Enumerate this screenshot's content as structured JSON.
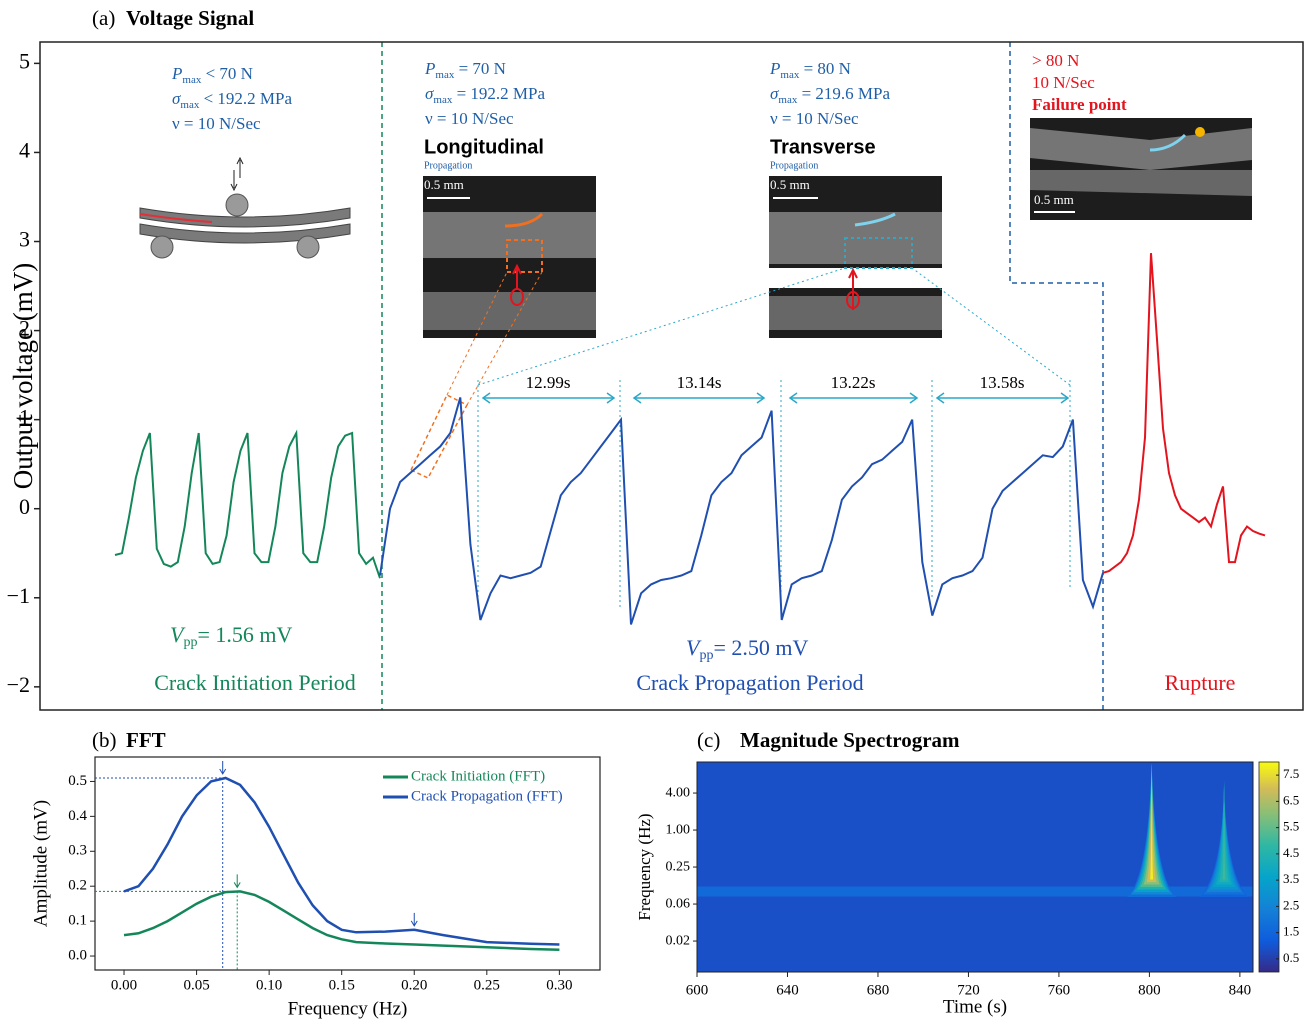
{
  "chart_data": [
    {
      "type": "line",
      "panel_label": "(a)",
      "title": "Voltage Signal",
      "y_label": "Output voltage (mV)",
      "ylim": [
        -2.26,
        5.24
      ],
      "yticks": [
        {
          "value": -2,
          "label": "−2"
        },
        {
          "value": -1,
          "label": "−1"
        },
        0,
        1,
        2,
        3,
        4,
        5
      ],
      "series": [
        {
          "name": "Crack Initiation Period",
          "color": "#14875a",
          "values": [
            -0.52,
            -0.5,
            -0.1,
            0.35,
            0.65,
            0.85,
            -0.45,
            -0.62,
            -0.65,
            -0.6,
            -0.2,
            0.4,
            0.85,
            -0.5,
            -0.62,
            -0.6,
            -0.3,
            0.3,
            0.65,
            0.85,
            -0.5,
            -0.6,
            -0.6,
            -0.2,
            0.4,
            0.7,
            0.85,
            -0.5,
            -0.6,
            -0.6,
            -0.2,
            0.35,
            0.7,
            0.82,
            0.85,
            -0.5,
            -0.62,
            -0.55,
            -0.78
          ]
        },
        {
          "name": "Crack Propagation Period",
          "color": "#1f4fb0",
          "values": [
            -0.75,
            0.0,
            0.3,
            0.4,
            0.5,
            0.6,
            0.7,
            0.85,
            1.25,
            -0.4,
            -1.25,
            -0.95,
            -0.75,
            -0.78,
            -0.75,
            -0.72,
            -0.65,
            -0.25,
            0.15,
            0.3,
            0.4,
            0.55,
            0.7,
            0.85,
            1.0,
            -1.3,
            -0.95,
            -0.85,
            -0.8,
            -0.78,
            -0.75,
            -0.7,
            -0.3,
            0.15,
            0.3,
            0.4,
            0.6,
            0.7,
            0.8,
            1.1,
            -1.25,
            -0.85,
            -0.78,
            -0.75,
            -0.7,
            -0.35,
            0.1,
            0.25,
            0.35,
            0.5,
            0.55,
            0.65,
            0.75,
            1.0,
            -0.6,
            -1.2,
            -0.85,
            -0.78,
            -0.75,
            -0.7,
            -0.55,
            0.0,
            0.2,
            0.3,
            0.4,
            0.5,
            0.6,
            0.58,
            0.7,
            1.0,
            -0.8,
            -1.1,
            -0.72
          ]
        },
        {
          "name": "Rupture",
          "color": "#e3141e",
          "values": [
            -0.72,
            -0.7,
            -0.65,
            -0.6,
            -0.5,
            -0.3,
            0.1,
            0.8,
            2.87,
            1.9,
            0.9,
            0.4,
            0.15,
            0.0,
            -0.05,
            -0.1,
            -0.15,
            -0.1,
            -0.2,
            0.05,
            0.25,
            -0.6,
            -0.6,
            -0.3,
            -0.2,
            -0.25,
            -0.28,
            -0.3
          ]
        }
      ],
      "conditions": [
        {
          "color": "#1f5fa8",
          "lines": [
            [
              "P",
              "max",
              " < 70 N"
            ],
            [
              "σ",
              "max",
              " < 192.2 MPa"
            ],
            [
              "ν = 10 N/Sec"
            ]
          ]
        },
        {
          "color": "#1f5fa8",
          "lines": [
            [
              "P",
              "max",
              " = 70 N"
            ],
            [
              "σ",
              "max",
              " = 192.2 MPa"
            ],
            [
              "ν = 10 N/Sec"
            ]
          ]
        },
        {
          "color": "#1f5fa8",
          "lines": [
            [
              "P",
              "max",
              " = 80 N"
            ],
            [
              "σ",
              "max",
              " = 219.6 MPa"
            ],
            [
              "ν = 10 N/Sec"
            ]
          ]
        },
        {
          "color": "#e3141e",
          "lines": [
            [
              "> 80 N"
            ],
            [
              "10 N/Sec"
            ],
            [
              "Failure point"
            ]
          ]
        }
      ],
      "images": [
        {
          "title": "Longitudinal",
          "subtitle": "Propagation",
          "scale": "0.5 mm"
        },
        {
          "title": "Transverse",
          "subtitle": "Propagation",
          "scale": "0.5 mm"
        },
        {
          "scale": "0.5 mm"
        }
      ],
      "intervals": [
        "12.99s",
        "13.14s",
        "13.22s",
        "13.58s"
      ],
      "vpp": [
        {
          "symbol": "V",
          "sub": "pp",
          "text": "= 1.56 mV",
          "color": "#14875a"
        },
        {
          "symbol": "V",
          "sub": "pp",
          "text": "= 2.50 mV",
          "color": "#1f4fb0"
        }
      ]
    },
    {
      "type": "line",
      "panel_label": "(b)",
      "title": "FFT",
      "x_label": "Frequency (Hz)",
      "y_label": "Amplitude (mV)",
      "xlim": [
        -0.02,
        0.328
      ],
      "ylim": [
        -0.04,
        0.57
      ],
      "xticks": [
        {
          "value": 0,
          "label": "0.00"
        },
        0.05,
        {
          "value": 0.1,
          "label": "0.10"
        },
        0.15,
        {
          "value": 0.2,
          "label": "0.20"
        },
        0.25,
        {
          "value": 0.3,
          "label": "0.30"
        }
      ],
      "yticks": [
        {
          "value": 0,
          "label": "0.0"
        },
        0.1,
        0.2,
        0.3,
        0.4,
        0.5
      ],
      "x": [
        0,
        0.01,
        0.02,
        0.03,
        0.04,
        0.05,
        0.06,
        0.07,
        0.08,
        0.09,
        0.1,
        0.11,
        0.12,
        0.13,
        0.14,
        0.15,
        0.16,
        0.18,
        0.2,
        0.22,
        0.25,
        0.28,
        0.3
      ],
      "series": [
        {
          "name": "Crack Initiation (FFT)",
          "color": "#14875a",
          "values": [
            0.06,
            0.065,
            0.08,
            0.1,
            0.125,
            0.15,
            0.17,
            0.183,
            0.185,
            0.175,
            0.155,
            0.13,
            0.105,
            0.08,
            0.06,
            0.048,
            0.04,
            0.036,
            0.033,
            0.03,
            0.025,
            0.02,
            0.018
          ]
        },
        {
          "name": "Crack Propagation (FFT)",
          "color": "#1f4fb0",
          "values": [
            0.185,
            0.2,
            0.25,
            0.32,
            0.4,
            0.46,
            0.5,
            0.51,
            0.49,
            0.44,
            0.37,
            0.29,
            0.21,
            0.145,
            0.1,
            0.075,
            0.068,
            0.07,
            0.075,
            0.06,
            0.04,
            0.035,
            0.033
          ]
        }
      ],
      "peaks": [
        {
          "series": 1,
          "x": 0.068,
          "y": 0.51
        },
        {
          "series": 0,
          "x": 0.078,
          "y": 0.185
        },
        {
          "series": 1,
          "x": 0.2,
          "y": 0.075
        }
      ]
    },
    {
      "type": "heatmap",
      "panel_label": "(c)",
      "title": "Magnitude Spectrogram",
      "x_label": "Time (s)",
      "y_label": "Frequency (Hz)",
      "xlim": [
        600,
        845.8
      ],
      "ylim": [
        0.0049,
        12.8
      ],
      "log_y": true,
      "xticks": [
        600,
        640,
        680,
        720,
        760,
        800,
        840
      ],
      "yticks": [
        {
          "value": 4,
          "label": "4.00"
        },
        {
          "value": 1,
          "label": "1.00"
        },
        0.25,
        {
          "value": 0.0625,
          "label": "0.06"
        },
        {
          "value": 0.015625,
          "label": "0.02"
        }
      ],
      "clim": [
        0,
        8
      ],
      "cticks": [
        0.5,
        1.5,
        2.5,
        3.5,
        4.5,
        5.5,
        6.5,
        7.5
      ],
      "background": 0.9,
      "band": {
        "frequency": 0.1,
        "magnitude": 1.8
      },
      "spikes": [
        {
          "time": 801,
          "magnitude": 7.8
        },
        {
          "time": 833,
          "magnitude": 5.0
        }
      ]
    }
  ]
}
